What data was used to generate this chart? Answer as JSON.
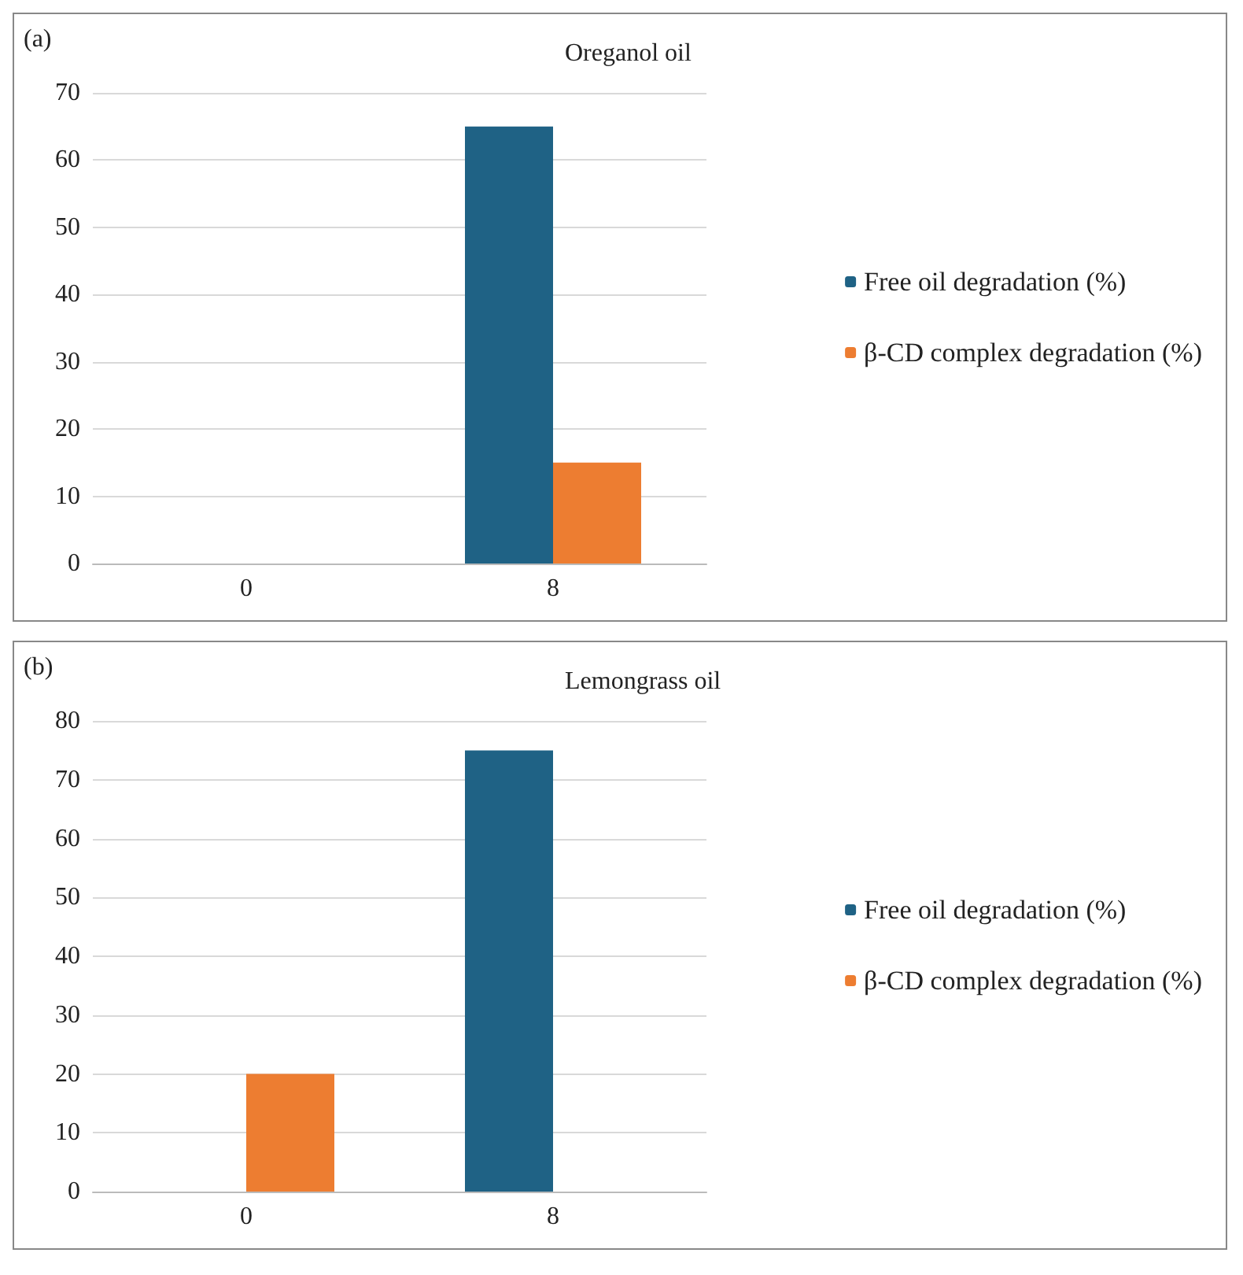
{
  "chart_data": [
    {
      "type": "bar",
      "title": "Oreganol oil",
      "annotations": [
        "(a)"
      ],
      "categories": [
        "0",
        "8"
      ],
      "series": [
        {
          "name": "Free oil degradation (%)",
          "color": "#1f6285",
          "values": [
            0,
            65
          ]
        },
        {
          "name": "β-CD complex degradation (%)",
          "color": "#ed7d31",
          "values": [
            0,
            15
          ]
        }
      ],
      "ylim": [
        0,
        70
      ],
      "yticks": [
        0,
        10,
        20,
        30,
        40,
        50,
        60,
        70
      ],
      "grid": "y",
      "legend": "right"
    },
    {
      "type": "bar",
      "title": "Lemongrass oil",
      "annotations": [
        "(b)"
      ],
      "categories": [
        "0",
        "8"
      ],
      "series": [
        {
          "name": "Free oil degradation (%)",
          "color": "#1f6285",
          "values": [
            0,
            75
          ]
        },
        {
          "name": "β-CD complex degradation (%)",
          "color": "#ed7d31",
          "values": [
            20,
            0
          ]
        }
      ],
      "ylim": [
        0,
        80
      ],
      "yticks": [
        0,
        10,
        20,
        30,
        40,
        50,
        60,
        70,
        80
      ],
      "grid": "y",
      "legend": "right"
    }
  ]
}
